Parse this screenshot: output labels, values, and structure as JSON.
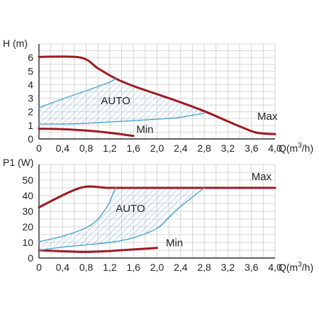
{
  "chart_data": [
    {
      "type": "line",
      "ylabel": "H (m)",
      "xlabel_parts": [
        "Q(m",
        "3",
        "/h)"
      ],
      "xlim": [
        0,
        4.0
      ],
      "ylim": [
        0,
        7
      ],
      "x_ticks": [
        0,
        0.4,
        0.8,
        1.2,
        1.6,
        2.0,
        2.4,
        2.8,
        3.2,
        3.6,
        4.0
      ],
      "x_tick_labels": [
        "0",
        "0,4",
        "0,8",
        "1,2",
        "1,6",
        "2,0",
        "2,4",
        "2,8",
        "3,2",
        "3,6",
        "4,0"
      ],
      "y_ticks": [
        0,
        1,
        2,
        3,
        4,
        5,
        6
      ],
      "y_tick_labels": [
        "0",
        "1",
        "2",
        "3",
        "4",
        "5",
        "6"
      ],
      "grid": true,
      "max_color": "#9b1b24",
      "auto_color": "#4fa3cf",
      "series": [
        {
          "name": "Max",
          "role": "max",
          "x": [
            0,
            0.7,
            1.0,
            1.3,
            1.6,
            2.0,
            2.4,
            2.8,
            3.2,
            3.5,
            3.7,
            4.0
          ],
          "y": [
            6.05,
            6.0,
            5.2,
            4.45,
            3.9,
            3.3,
            2.7,
            2.05,
            1.3,
            0.75,
            0.45,
            0.35
          ]
        },
        {
          "name": "Min",
          "role": "min",
          "x": [
            0,
            0.4,
            0.8,
            1.2,
            1.6
          ],
          "y": [
            0.75,
            0.72,
            0.62,
            0.45,
            0.22
          ]
        },
        {
          "name": "",
          "role": "auto-upper",
          "x": [
            0,
            0.4,
            0.8,
            1.2,
            1.3
          ],
          "y": [
            2.3,
            2.95,
            3.55,
            4.2,
            4.45
          ]
        },
        {
          "name": "",
          "role": "auto-lower",
          "x": [
            0,
            0.4,
            0.8,
            1.2,
            1.6,
            2.0,
            2.4,
            2.8
          ],
          "y": [
            1.1,
            1.1,
            1.15,
            1.25,
            1.35,
            1.45,
            1.6,
            1.9
          ]
        }
      ],
      "annotations": [
        {
          "text": "AUTO",
          "x": 1.05,
          "y": 2.55
        },
        {
          "text": "Max",
          "x": 3.7,
          "y": 1.4
        },
        {
          "text": "Min",
          "x": 1.65,
          "y": 0.45
        }
      ]
    },
    {
      "type": "line",
      "ylabel": "P1 (W)",
      "xlabel_parts": [
        "Q(m",
        "3",
        "/h)"
      ],
      "xlim": [
        0,
        4.0
      ],
      "ylim": [
        0,
        60
      ],
      "x_ticks": [
        0,
        0.4,
        0.8,
        1.2,
        1.6,
        2.0,
        2.4,
        2.8,
        3.2,
        3.6,
        4.0
      ],
      "x_tick_labels": [
        "0",
        "0,4",
        "0,8",
        "1,2",
        "1,6",
        "2,0",
        "2,4",
        "2,8",
        "3,2",
        "3,6",
        "4,0"
      ],
      "y_ticks": [
        0,
        10,
        20,
        30,
        40,
        50
      ],
      "y_tick_labels": [
        "0",
        "10",
        "20",
        "30",
        "40",
        "50"
      ],
      "grid": true,
      "max_color": "#9b1b24",
      "auto_color": "#4fa3cf",
      "series": [
        {
          "name": "Max",
          "role": "max",
          "x": [
            0,
            0.7,
            1.2,
            2.0,
            3.0,
            4.0
          ],
          "y": [
            32.5,
            45,
            45,
            45,
            45,
            45
          ]
        },
        {
          "name": "Min",
          "role": "min",
          "x": [
            0,
            0.4,
            0.8,
            1.2,
            1.6,
            2.0
          ],
          "y": [
            5.0,
            4.3,
            3.9,
            4.5,
            5.5,
            6.5
          ]
        },
        {
          "name": "",
          "role": "auto-upper",
          "x": [
            0,
            0.4,
            0.8,
            1.0,
            1.1,
            1.2,
            1.25,
            1.3
          ],
          "y": [
            10.5,
            14,
            19.5,
            25,
            30,
            36,
            41,
            45
          ]
        },
        {
          "name": "",
          "role": "auto-lower",
          "x": [
            0,
            0.4,
            0.8,
            1.2,
            1.6,
            2.0,
            2.2,
            2.4,
            2.8
          ],
          "y": [
            5,
            7,
            8.5,
            10,
            13,
            19,
            26,
            33,
            45
          ]
        }
      ],
      "annotations": [
        {
          "text": "AUTO",
          "x": 1.3,
          "y": 29.5
        },
        {
          "text": "Max",
          "x": 3.6,
          "y": 50
        },
        {
          "text": "Min",
          "x": 2.15,
          "y": 7.5
        }
      ]
    }
  ]
}
